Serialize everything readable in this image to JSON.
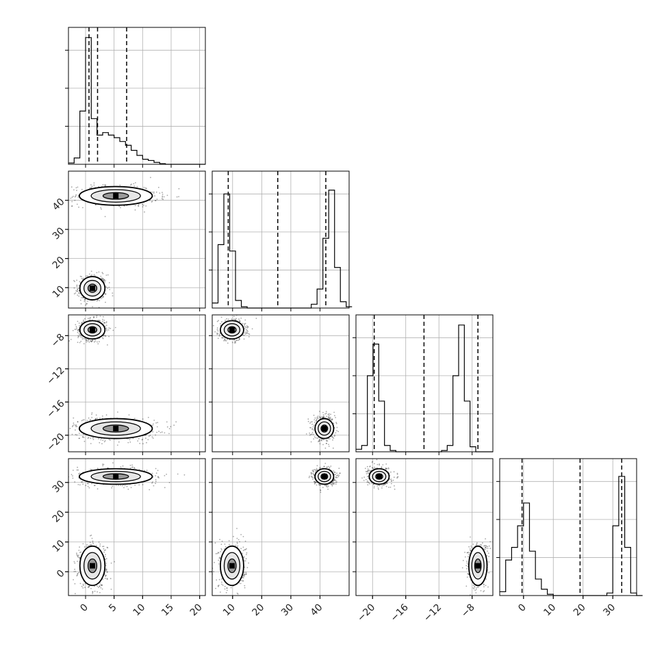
{
  "figure": {
    "type": "corner-plot"
  },
  "chart_data": {
    "type": "corner",
    "description_free": true,
    "parameters": [
      {
        "id": "p0",
        "range": [
          -3,
          21
        ],
        "ticks": [
          0,
          5,
          10,
          15,
          20
        ],
        "tick_labels": [
          "0",
          "5",
          "10",
          "15",
          "20"
        ],
        "quantiles": [
          0.6,
          2.1,
          7.2
        ],
        "hist": {
          "edges_start": -3,
          "bin_width": 1,
          "counts": [
            0.01,
            0.05,
            0.42,
            1.0,
            0.36,
            0.23,
            0.25,
            0.23,
            0.21,
            0.18,
            0.15,
            0.11,
            0.07,
            0.04,
            0.03,
            0.015,
            0.005,
            0,
            0,
            0,
            0,
            0,
            0,
            0
          ]
        }
      },
      {
        "id": "p1",
        "range": [
          3,
          50
        ],
        "ticks": [
          10,
          20,
          30,
          40
        ],
        "tick_labels": [
          "10",
          "20",
          "30",
          "40"
        ],
        "quantiles": [
          8.5,
          25.5,
          42.0
        ],
        "hist": {
          "edges_start": 3,
          "bin_width": 2,
          "counts": [
            0.04,
            0.5,
            0.9,
            0.45,
            0.06,
            0.01,
            0,
            0,
            0,
            0,
            0,
            0,
            0,
            0,
            0,
            0,
            0,
            0.03,
            0.15,
            0.55,
            0.93,
            0.32,
            0.05,
            0.01
          ]
        }
      },
      {
        "id": "p2",
        "range": [
          -22,
          -5.5
        ],
        "ticks": [
          -20,
          -16,
          -12,
          -8
        ],
        "tick_labels": [
          "−20",
          "−16",
          "−12",
          "−8"
        ],
        "quantiles": [
          -19.8,
          -13.8,
          -7.3
        ],
        "hist": {
          "edges_start": -22,
          "bin_width": 0.6875,
          "counts": [
            0.02,
            0.05,
            0.6,
            0.85,
            0.4,
            0.05,
            0.01,
            0,
            0,
            0,
            0,
            0,
            0,
            0,
            0,
            0.01,
            0.05,
            0.6,
            1.0,
            0.4,
            0.04,
            0,
            0,
            0
          ]
        }
      },
      {
        "id": "p3",
        "range": [
          -8,
          38
        ],
        "ticks": [
          0,
          10,
          20,
          30
        ],
        "tick_labels": [
          "0",
          "10",
          "20",
          "30"
        ],
        "quantiles": [
          -0.5,
          19.0,
          33.0
        ],
        "hist": {
          "edges_start": -8,
          "bin_width": 2,
          "counts": [
            0.03,
            0.28,
            0.38,
            0.55,
            0.73,
            0.35,
            0.13,
            0.05,
            0.01,
            0,
            0,
            0,
            0,
            0,
            0,
            0,
            0,
            0,
            0.02,
            0.55,
            0.94,
            0.38,
            0.02,
            0
          ]
        }
      }
    ],
    "clusters": [
      {
        "weight": 0.48,
        "mean": [
          1.2,
          9.8,
          -7.3,
          2.0
        ],
        "sd": [
          1.1,
          2.0,
          0.55,
          3.3
        ]
      },
      {
        "weight": 0.52,
        "mean": [
          5.3,
          41.5,
          -19.2,
          32.0
        ],
        "sd": [
          3.2,
          1.6,
          0.6,
          1.3
        ]
      }
    ],
    "hist_ymax": 1.08,
    "hist_yticks": [
      0.3,
      0.6,
      0.9
    ],
    "contour_levels": [
      0.39,
      0.86,
      0.99
    ]
  }
}
